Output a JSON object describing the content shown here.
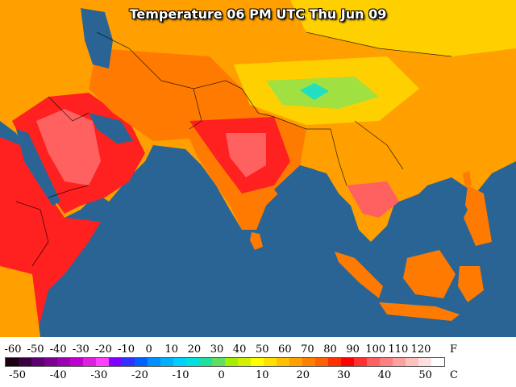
{
  "title": "Temperature 06 PM UTC Thu Jun 09",
  "legend": {
    "fahrenheit_unit": "F",
    "celsius_unit": "C",
    "fahrenheit_ticks": [
      "-60",
      "-50",
      "-40",
      "-30",
      "-20",
      "-10",
      "0",
      "10",
      "20",
      "30",
      "40",
      "50",
      "60",
      "70",
      "80",
      "90",
      "100",
      "110",
      "120"
    ],
    "celsius_ticks": [
      "-50",
      "-40",
      "-30",
      "-20",
      "-10",
      "0",
      "10",
      "20",
      "30",
      "40",
      "50"
    ],
    "colors": [
      "#1a0010",
      "#3a0040",
      "#5a0070",
      "#7a0090",
      "#9a00b0",
      "#c000d0",
      "#e020e0",
      "#ff40ff",
      "#8000ff",
      "#3030ff",
      "#0060ff",
      "#0090ff",
      "#00b0ff",
      "#00d0ff",
      "#00e0e0",
      "#20e0a0",
      "#60e060",
      "#a0f000",
      "#d0f000",
      "#ffff00",
      "#ffe000",
      "#ffc000",
      "#ffa000",
      "#ff8000",
      "#ff6000",
      "#ff3000",
      "#ff0000",
      "#ff3030",
      "#ff6060",
      "#ff8080",
      "#ffa0a0",
      "#ffc0c0",
      "#ffe0e0",
      "#ffffff"
    ]
  },
  "map_colors": {
    "ocean": "#2a6494",
    "hot": "#ff2020",
    "very_hot": "#ff6060",
    "warm": "#ff7a00",
    "mild": "#ffa000",
    "cool": "#ffd000",
    "cold": "#a0e040",
    "coldest": "#20e0c0"
  }
}
